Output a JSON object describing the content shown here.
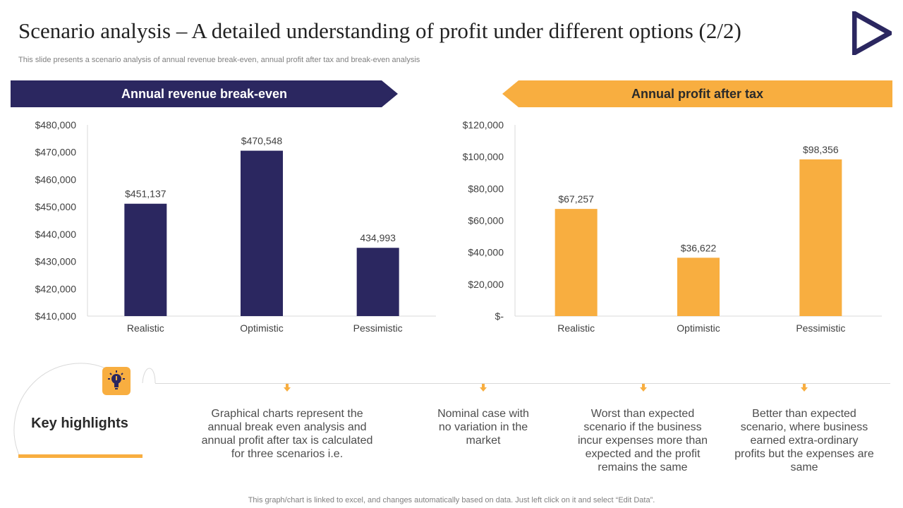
{
  "slide": {
    "title": "Scenario analysis – A detailed understanding of profit under different options (2/2)",
    "subtitle": "This slide presents a scenario analysis of annual revenue break-even, annual profit after tax  and break-even analysis",
    "footer": "This graph/chart is linked to excel,  and changes automatically based on data. Just left click on it and select “Edit Data”."
  },
  "colors": {
    "navy": "#2b2760",
    "orange": "#f8ae40"
  },
  "icons": {
    "logo": "play-triangle-icon",
    "highlight": "lightbulb-icon"
  },
  "banners": {
    "left": "Annual revenue break-even",
    "right": "Annual profit after tax"
  },
  "chart_data": [
    {
      "type": "bar",
      "title": "Annual revenue break-even",
      "categories": [
        "Realistic",
        "Optimistic",
        "Pessimistic"
      ],
      "values": [
        451137,
        470548,
        434993
      ],
      "data_labels": [
        "$451,137",
        "$470,548",
        "434,993"
      ],
      "ylim": [
        410000,
        480000
      ],
      "yticks": [
        410000,
        420000,
        430000,
        440000,
        450000,
        460000,
        470000,
        480000
      ],
      "ytick_labels": [
        "$410,000",
        "$420,000",
        "$430,000",
        "$440,000",
        "$450,000",
        "$460,000",
        "$470,000",
        "$480,000"
      ],
      "color": "#2b2760",
      "grid": false
    },
    {
      "type": "bar",
      "title": "Annual profit after tax",
      "categories": [
        "Realistic",
        "Optimistic",
        "Pessimistic"
      ],
      "values": [
        67257,
        36622,
        98356
      ],
      "data_labels": [
        "$67,257",
        "$36,622",
        "$98,356"
      ],
      "ylim": [
        0,
        120000
      ],
      "yticks": [
        0,
        20000,
        40000,
        60000,
        80000,
        100000,
        120000
      ],
      "ytick_labels": [
        "$-",
        "$20,000",
        "$40,000",
        "$60,000",
        "$80,000",
        "$100,000",
        "$120,000"
      ],
      "color": "#f8ae40",
      "grid": false
    }
  ],
  "highlights": {
    "label": "Key highlights",
    "items": [
      "Graphical charts represent the annual break even analysis and annual profit after tax is calculated for three scenarios i.e.",
      "Nominal case with no variation in the market",
      "Worst than expected scenario if the business incur expenses more than expected and the profit remains the same",
      "Better than expected scenario, where business earned extra-ordinary profits but the expenses are same"
    ]
  }
}
